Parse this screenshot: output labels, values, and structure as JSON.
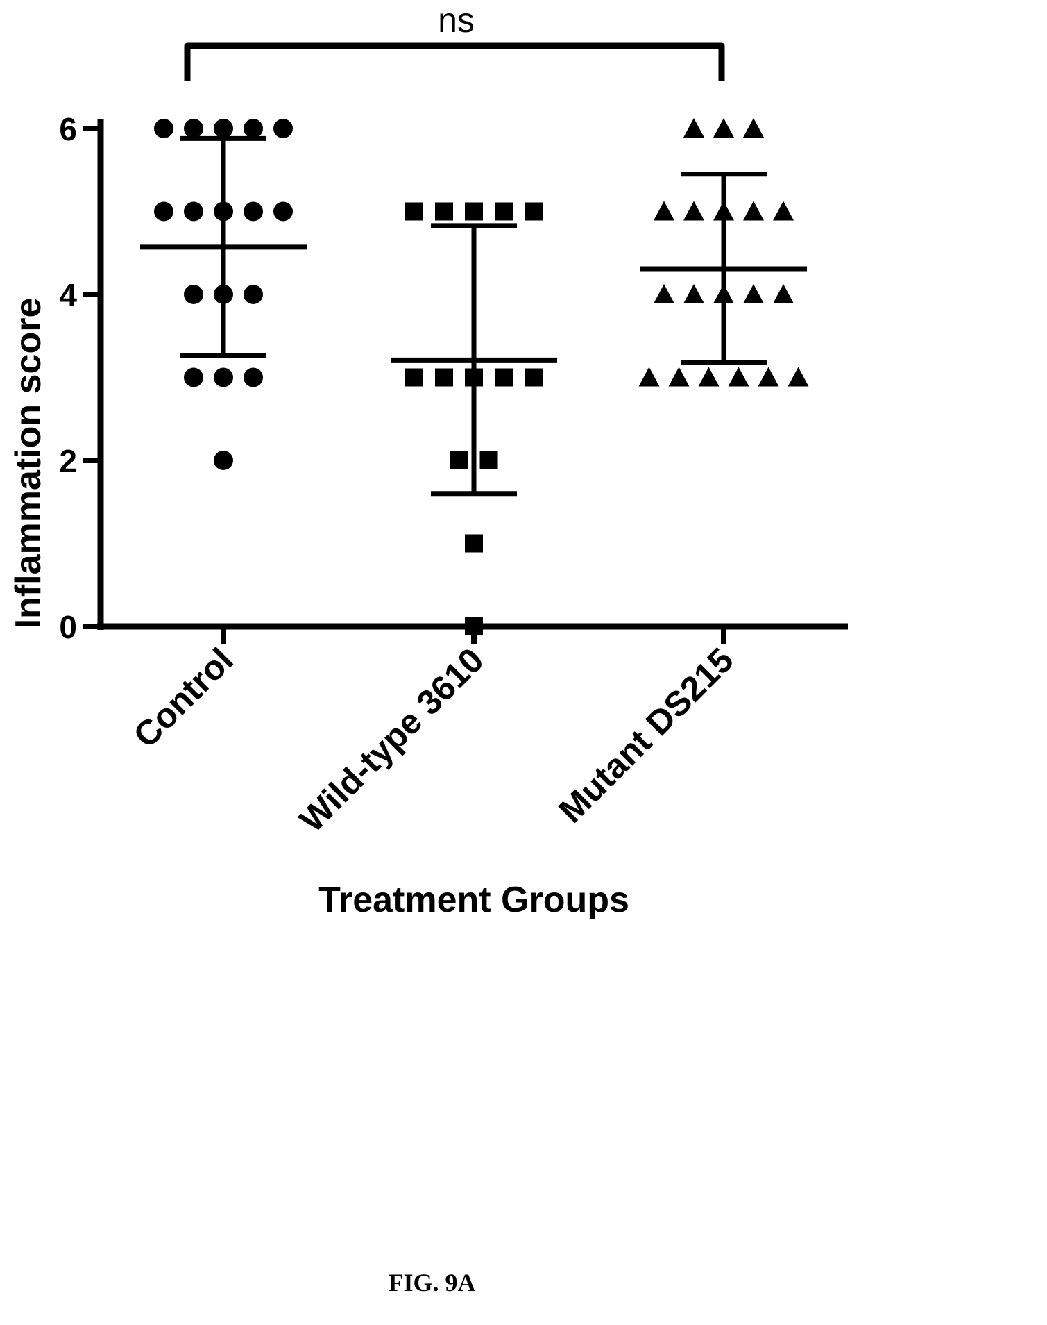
{
  "chart_data": {
    "type": "scatter",
    "subtype": "dot-plot-with-mean-and-sd",
    "ylabel": "Inflammation score",
    "xlabel": "Treatment Groups",
    "ylim": [
      0,
      6
    ],
    "yticks": [
      0,
      2,
      4,
      6
    ],
    "categories": [
      "Control",
      "Wild-type 3610",
      "Mutant DS215"
    ],
    "groups": [
      {
        "name": "Control",
        "marker": "circle",
        "points": [
          6,
          6,
          6,
          6,
          6,
          5,
          5,
          5,
          5,
          5,
          4,
          4,
          4,
          3,
          3,
          3,
          2
        ],
        "mean": 4.57,
        "sd_low": 3.26,
        "sd_high": 5.88
      },
      {
        "name": "Wild-type 3610",
        "marker": "square",
        "points": [
          5,
          5,
          5,
          5,
          5,
          3,
          3,
          3,
          3,
          3,
          2,
          2,
          1,
          0
        ],
        "mean": 3.21,
        "sd_low": 1.6,
        "sd_high": 4.83
      },
      {
        "name": "Mutant DS215",
        "marker": "triangle",
        "points": [
          6,
          6,
          6,
          5,
          5,
          5,
          5,
          5,
          4,
          4,
          4,
          4,
          4,
          3,
          3,
          3,
          3,
          3,
          3
        ],
        "mean": 4.31,
        "sd_low": 3.18,
        "sd_high": 5.45
      }
    ],
    "annotations": [
      {
        "text": "ns",
        "from": "Control",
        "to": "Mutant DS215",
        "type": "bracket"
      }
    ],
    "grid": false,
    "legend": "none"
  },
  "figure": {
    "caption": "FIG. 9A"
  }
}
